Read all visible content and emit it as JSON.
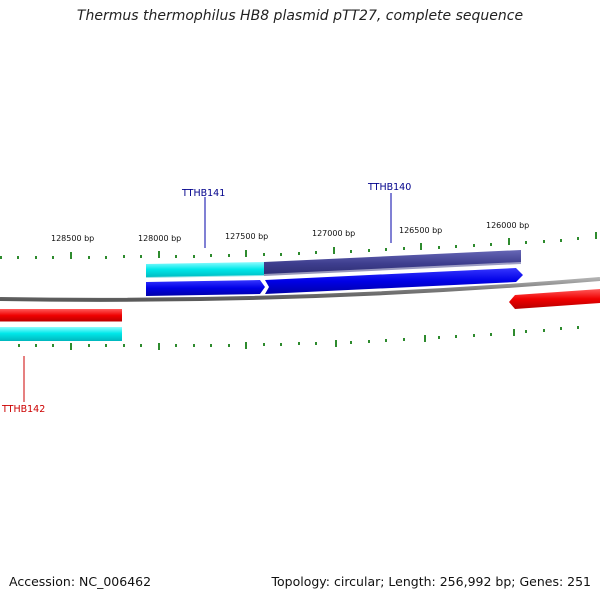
{
  "title": "Thermus thermophilus HB8 plasmid pTT27, complete sequence",
  "footer": {
    "accession": "Accession: NC_006462",
    "topology": "Topology: circular; Length: 256,992 bp; Genes: 251"
  },
  "scale_labels": [
    "128500 bp",
    "128000 bp",
    "127500 bp",
    "127000 bp",
    "126500 bp",
    "126000 bp"
  ],
  "gene_labels": [
    {
      "id": "upper-left",
      "text": "TTHB141",
      "color": "#00008b"
    },
    {
      "id": "upper-right",
      "text": "TTHB140",
      "color": "#00008b"
    },
    {
      "id": "lower-left",
      "text": "TTHB142",
      "color": "#cc0000"
    }
  ],
  "colors": {
    "backbone": "#888888",
    "tick": "#2e8b2e",
    "cyan_feature": "#00e5e5",
    "slate_feature": "#3d3d8c",
    "blue_feature": "#0000e0",
    "red_feature": "#ee0000"
  }
}
